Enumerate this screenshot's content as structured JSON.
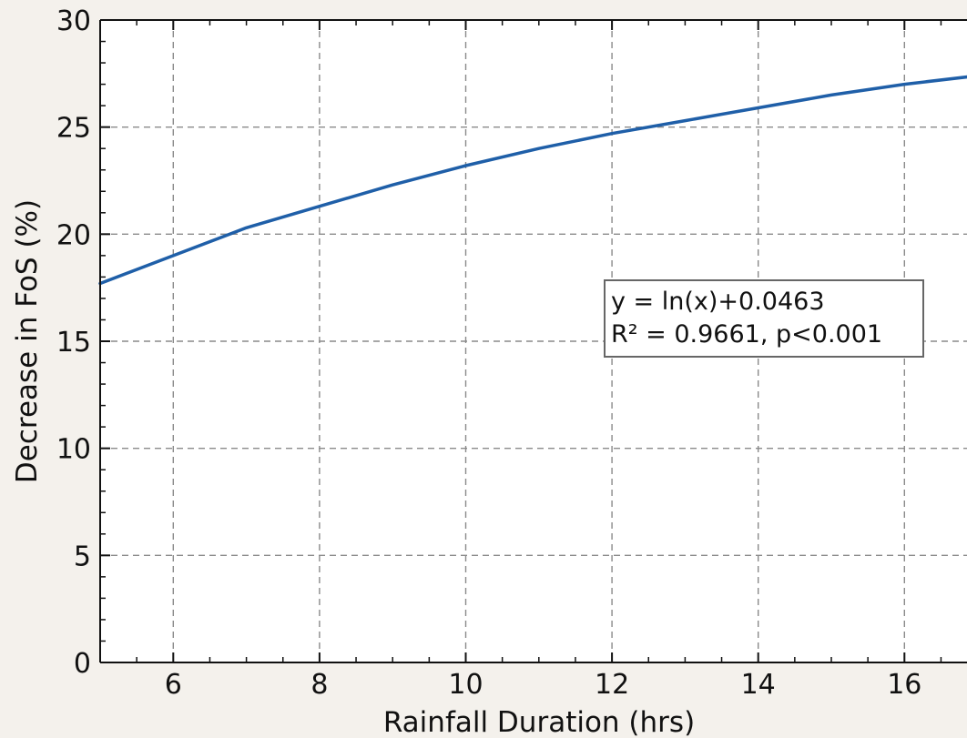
{
  "chart_data": {
    "type": "line",
    "title": "",
    "xlabel": "Rainfall Duration (hrs)",
    "ylabel": "Decrease in FoS (%)",
    "xlim": [
      5,
      17
    ],
    "ylim": [
      0,
      30
    ],
    "x_ticks": [
      6,
      8,
      10,
      12,
      14,
      16
    ],
    "x_tick_labels": [
      "6",
      "8",
      "10",
      "12",
      "14",
      "16"
    ],
    "y_ticks": [
      0,
      5,
      10,
      15,
      20,
      25,
      30
    ],
    "y_tick_labels": [
      "0",
      "5",
      "10",
      "15",
      "20",
      "25",
      "30"
    ],
    "grid": true,
    "series": [
      {
        "color": "#1f5fa8",
        "x": [
          5,
          6,
          7,
          8,
          9,
          10,
          11,
          12,
          13,
          14,
          15,
          16,
          17
        ],
        "y": [
          17.7,
          19.0,
          20.3,
          21.3,
          22.3,
          23.2,
          24.0,
          24.7,
          25.3,
          25.9,
          26.5,
          27.0,
          27.4
        ]
      }
    ],
    "annotation": {
      "line1": "y = ln(x)+0.0463",
      "line2": "R² = 0.9661, p<0.001"
    }
  }
}
